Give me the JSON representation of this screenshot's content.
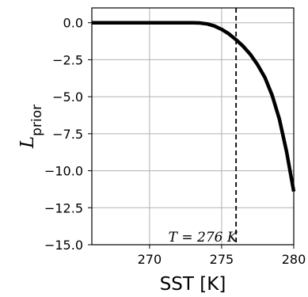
{
  "chart_data": {
    "type": "line",
    "xlabel": "SST [K]",
    "ylabel": "L_prior",
    "xlim": [
      266,
      280
    ],
    "ylim": [
      -15,
      1
    ],
    "x_ticks": [
      270,
      275,
      280
    ],
    "y_ticks": [
      0.0,
      -2.5,
      -5.0,
      -7.5,
      -10.0,
      -12.5,
      -15.0
    ],
    "x_tick_labels": [
      "270",
      "275",
      "280"
    ],
    "y_tick_labels": [
      "0.0",
      "−2.5",
      "−5.0",
      "−7.5",
      "−10.0",
      "−12.5",
      "−15.0"
    ],
    "grid": true,
    "series": [
      {
        "x": [
          266,
          268,
          270,
          272,
          273,
          273.5,
          274,
          274.5,
          275,
          275.5,
          276,
          276.5,
          277,
          277.5,
          278,
          278.5,
          279,
          279.5,
          280
        ],
        "values": [
          0,
          0,
          0,
          0,
          0,
          -0.02,
          -0.08,
          -0.22,
          -0.45,
          -0.75,
          -1.15,
          -1.6,
          -2.15,
          -2.85,
          -3.7,
          -4.9,
          -6.5,
          -8.7,
          -11.4
        ],
        "color": "#000000"
      }
    ],
    "threshold_line": {
      "x": 276,
      "style": "dashed",
      "color": "#000000"
    },
    "annotation": {
      "text": "T = 276 K",
      "x": 276
    }
  }
}
